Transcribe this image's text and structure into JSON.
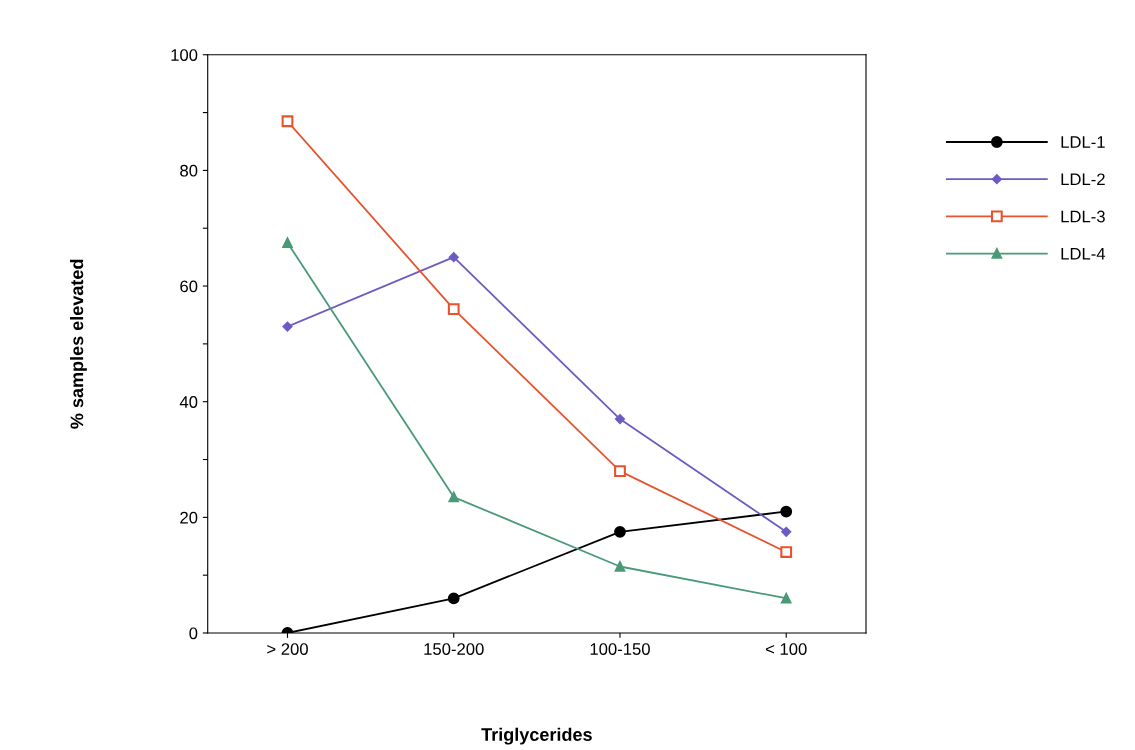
{
  "chart_data": {
    "type": "line",
    "xlabel": "Triglycerides",
    "ylabel": "% samples elevated",
    "categories": [
      "> 200",
      "150-200",
      "100-150",
      "< 100"
    ],
    "series": [
      {
        "name": "LDL-1",
        "color": "#000000",
        "marker": "circle",
        "values": [
          0,
          6,
          17.5,
          21
        ]
      },
      {
        "name": "LDL-2",
        "color": "#6a5cc4",
        "marker": "diamond",
        "values": [
          53,
          65,
          37,
          17.5
        ]
      },
      {
        "name": "LDL-3",
        "color": "#e8532f",
        "marker": "square",
        "values": [
          88.5,
          56,
          28,
          14
        ]
      },
      {
        "name": "LDL-4",
        "color": "#4a9a78",
        "marker": "triangle",
        "values": [
          67.5,
          23.5,
          11.5,
          6
        ]
      }
    ],
    "ylim": [
      0,
      100
    ],
    "yticks": [
      0,
      {
        "value": 10,
        "label": null
      },
      20,
      {
        "value": 30,
        "label": null
      },
      40,
      {
        "value": 50,
        "label": null
      },
      60,
      {
        "value": 70,
        "label": null
      },
      80,
      {
        "value": 90,
        "label": null
      },
      100
    ],
    "grid": false,
    "legend": "right",
    "line_style": "solid"
  }
}
